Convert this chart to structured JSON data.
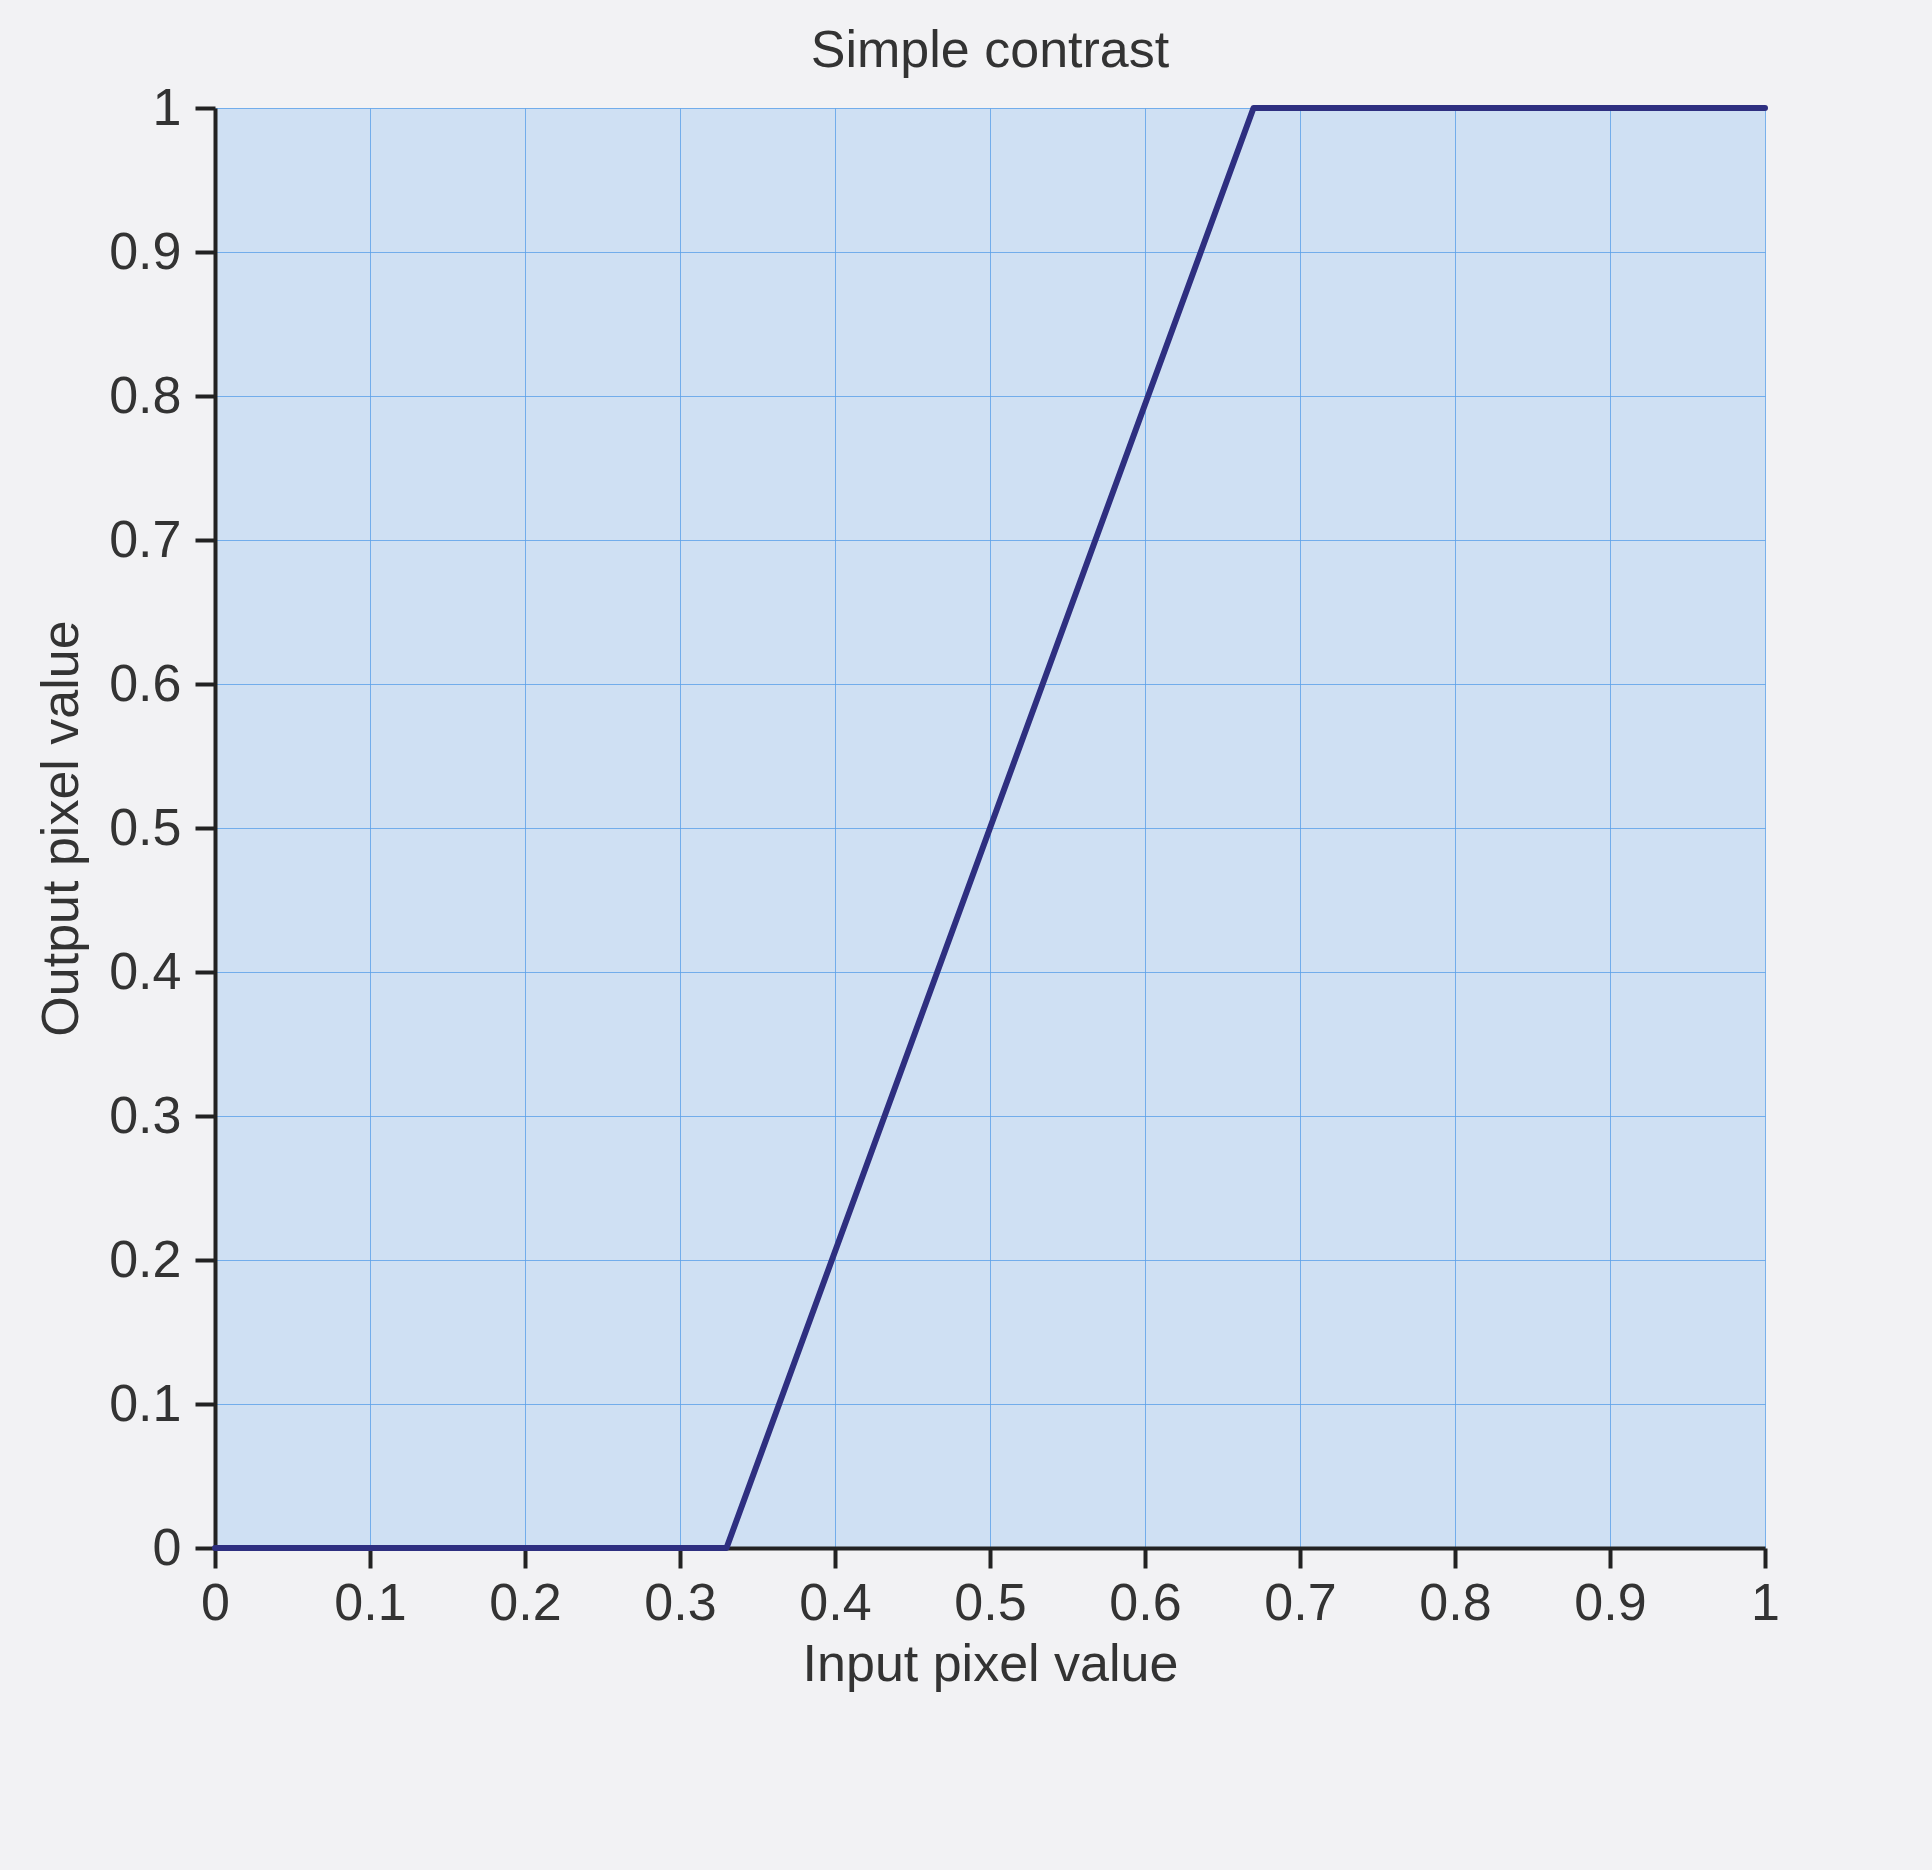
{
  "chart_data": {
    "type": "line",
    "title": "Simple contrast",
    "xlabel": "Input pixel value",
    "ylabel": "Output pixel value",
    "x": [
      0,
      0.33,
      0.67,
      1
    ],
    "series": [
      {
        "color": "#2e2f80",
        "values": [
          0,
          0,
          1,
          1
        ]
      }
    ],
    "xlim": [
      0,
      1
    ],
    "ylim": [
      0,
      1
    ],
    "xticks": [
      0,
      0.1,
      0.2,
      0.3,
      0.4,
      0.5,
      0.6,
      0.7,
      0.8,
      0.9,
      1
    ],
    "yticks": [
      0,
      0.1,
      0.2,
      0.3,
      0.4,
      0.5,
      0.6,
      0.7,
      0.8,
      0.9,
      1
    ],
    "grid": true,
    "line_style": "solid"
  }
}
